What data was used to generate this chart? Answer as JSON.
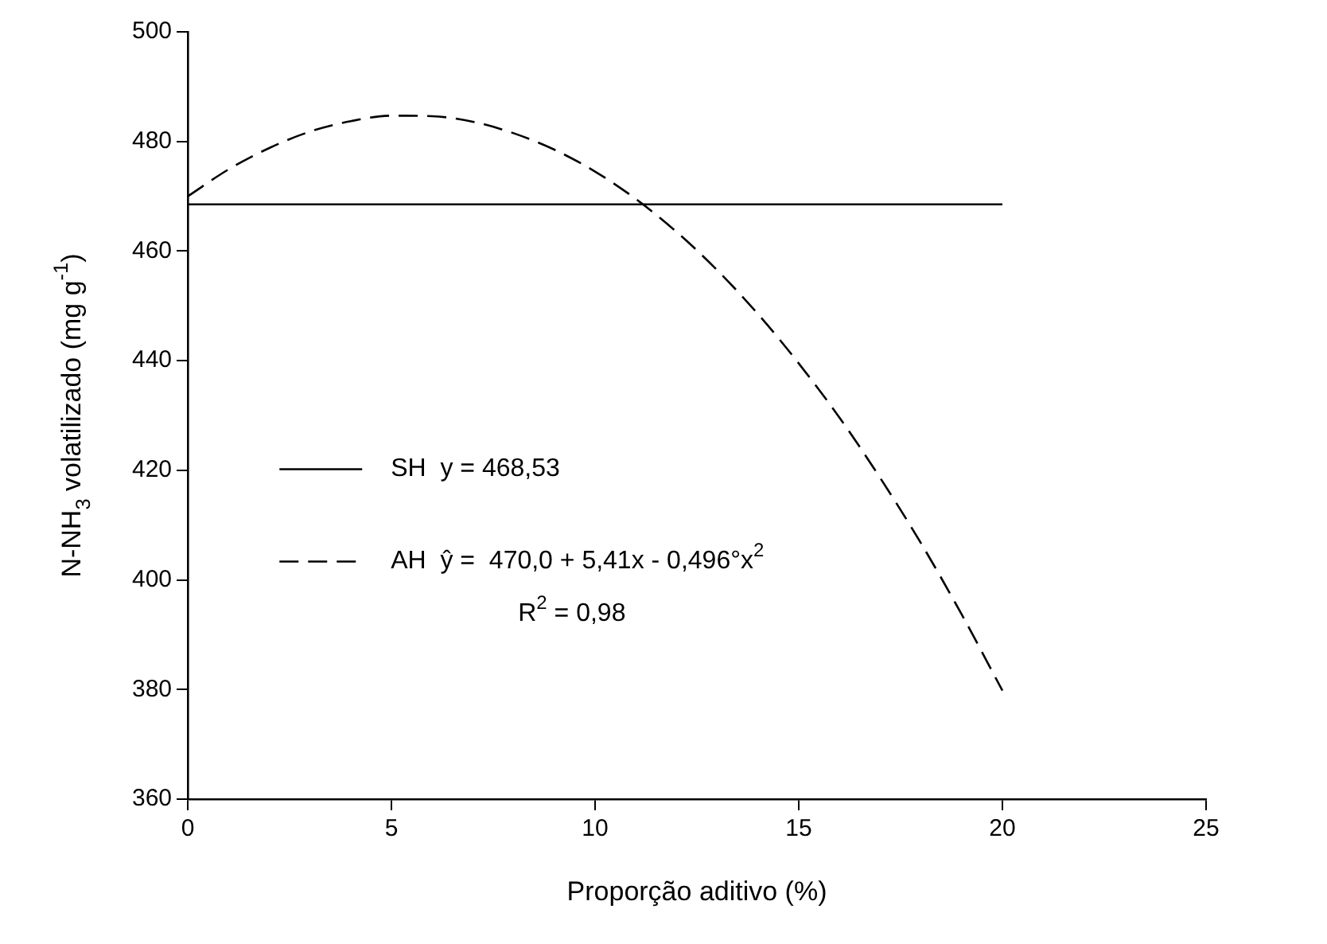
{
  "chart_data": {
    "type": "line",
    "xlabel": "Proporção aditivo (%)",
    "ylabel": "N-NH$_{3}$ volatilizado (mg g$^{-1}$)",
    "xlim": [
      0,
      25
    ],
    "xticks": [
      0,
      5,
      10,
      15,
      20,
      25
    ],
    "ylim": [
      360,
      500
    ],
    "yticks": [
      360,
      380,
      400,
      420,
      440,
      460,
      480,
      500
    ],
    "grid": false,
    "legend": "left",
    "marker": "none",
    "series": [
      {
        "name": "SH  y = 468,53",
        "color": "#000000",
        "line_style": "solid",
        "x": [
          0,
          20
        ],
        "values": [
          468.53,
          468.53
        ]
      },
      {
        "name": "AH  ŷ =  470,0 + 5,41x - 0,496°x$^{2}$",
        "color": "#000000",
        "line_style": "dashed",
        "x": [
          0,
          1,
          2,
          3,
          4,
          5,
          6,
          7,
          8,
          9,
          10,
          11,
          12,
          13,
          14,
          15,
          16,
          17,
          18,
          19,
          20
        ],
        "values": [
          470.0,
          474.9,
          478.8,
          481.8,
          483.7,
          484.7,
          484.6,
          483.6,
          481.5,
          478.5,
          474.5,
          469.5,
          463.5,
          456.5,
          448.5,
          439.5,
          429.6,
          418.6,
          406.7,
          393.7,
          379.8
        ]
      }
    ],
    "annotations": [
      "R$^{2}$ = 0,98"
    ]
  }
}
